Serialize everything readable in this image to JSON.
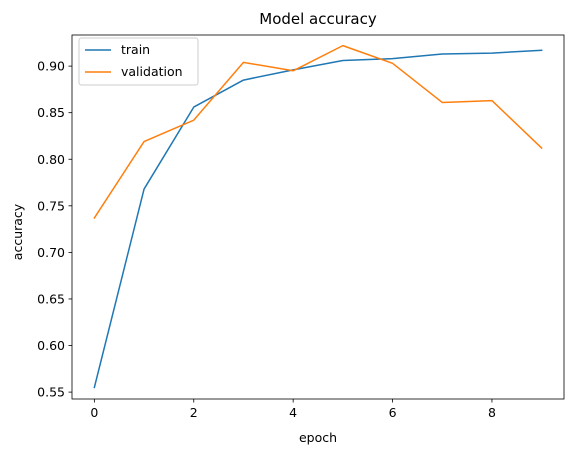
{
  "chart_data": {
    "type": "line",
    "title": "Model accuracy",
    "xlabel": "epoch",
    "ylabel": "accuracy",
    "x": [
      0,
      1,
      2,
      3,
      4,
      5,
      6,
      7,
      8,
      9
    ],
    "xlim": [
      -0.45,
      9.45
    ],
    "ylim": [
      0.5426,
      0.9334
    ],
    "xticks": [
      0,
      2,
      4,
      6,
      8
    ],
    "xtick_labels": [
      "0",
      "2",
      "4",
      "6",
      "8"
    ],
    "yticks": [
      0.55,
      0.6,
      0.65,
      0.7,
      0.75,
      0.8,
      0.85,
      0.9
    ],
    "ytick_labels": [
      "0.55",
      "0.60",
      "0.65",
      "0.70",
      "0.75",
      "0.80",
      "0.85",
      "0.90"
    ],
    "grid": false,
    "legend_position": "top-left",
    "series": [
      {
        "name": "train",
        "color": "#1f77b4",
        "values": [
          0.555,
          0.768,
          0.856,
          0.885,
          0.896,
          0.906,
          0.908,
          0.913,
          0.914,
          0.917
        ]
      },
      {
        "name": "validation",
        "color": "#ff7f0e",
        "values": [
          0.737,
          0.819,
          0.842,
          0.904,
          0.895,
          0.922,
          0.903,
          0.861,
          0.863,
          0.812
        ]
      }
    ]
  }
}
